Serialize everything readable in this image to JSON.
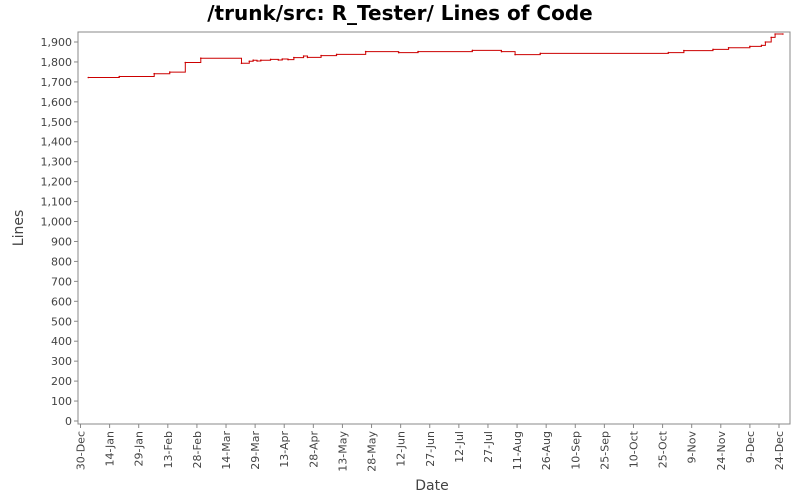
{
  "chart_data": {
    "type": "line",
    "title": "/trunk/src: R_Tester/ Lines of Code",
    "xlabel": "Date",
    "ylabel": "Lines",
    "ylim": [
      0,
      1950
    ],
    "y_ticks": [
      0,
      100,
      200,
      300,
      400,
      500,
      600,
      700,
      800,
      900,
      1000,
      1100,
      1200,
      1300,
      1400,
      1500,
      1600,
      1700,
      1800,
      1900
    ],
    "y_tick_labels": [
      "0",
      "100",
      "200",
      "300",
      "400",
      "500",
      "600",
      "700",
      "800",
      "900",
      "1,000",
      "1,100",
      "1,200",
      "1,300",
      "1,400",
      "1,500",
      "1,600",
      "1,700",
      "1,800",
      "1,900"
    ],
    "x_range_days": [
      -1.5,
      360
    ],
    "x_tick_days": [
      0,
      15,
      30,
      45,
      60,
      75,
      90,
      105,
      120,
      135,
      150,
      165,
      180,
      195,
      210,
      225,
      240,
      255,
      270,
      285,
      300,
      315,
      330,
      345,
      360
    ],
    "x_tick_labels": [
      "30-Dec",
      "14-Jan",
      "29-Jan",
      "13-Feb",
      "28-Feb",
      "14-Mar",
      "29-Mar",
      "13-Apr",
      "28-Apr",
      "13-May",
      "28-May",
      "12-Jun",
      "27-Jun",
      "12-Jul",
      "27-Jul",
      "11-Aug",
      "26-Aug",
      "10-Sep",
      "25-Sep",
      "10-Oct",
      "25-Oct",
      "9-Nov",
      "24-Nov",
      "9-Dec",
      "24-Dec"
    ],
    "grid": false,
    "line_color": "#cc0000",
    "series": [
      {
        "name": "",
        "points": [
          [
            4,
            1722
          ],
          [
            20,
            1727
          ],
          [
            38,
            1741
          ],
          [
            46,
            1749
          ],
          [
            54,
            1797
          ],
          [
            62,
            1819
          ],
          [
            83,
            1793
          ],
          [
            87,
            1803
          ],
          [
            89,
            1809
          ],
          [
            91,
            1805
          ],
          [
            93,
            1809
          ],
          [
            98,
            1813
          ],
          [
            102,
            1810
          ],
          [
            104,
            1815
          ],
          [
            107,
            1812
          ],
          [
            110,
            1822
          ],
          [
            115,
            1830
          ],
          [
            117,
            1823
          ],
          [
            124,
            1832
          ],
          [
            132,
            1838
          ],
          [
            147,
            1852
          ],
          [
            164,
            1847
          ],
          [
            174,
            1852
          ],
          [
            202,
            1858
          ],
          [
            217,
            1852
          ],
          [
            224,
            1837
          ],
          [
            237,
            1843
          ],
          [
            303,
            1847
          ],
          [
            311,
            1857
          ],
          [
            326,
            1863
          ],
          [
            334,
            1871
          ],
          [
            345,
            1878
          ],
          [
            351,
            1883
          ],
          [
            353,
            1900
          ],
          [
            356,
            1923
          ],
          [
            358,
            1940
          ],
          [
            362,
            1940
          ]
        ]
      }
    ]
  }
}
